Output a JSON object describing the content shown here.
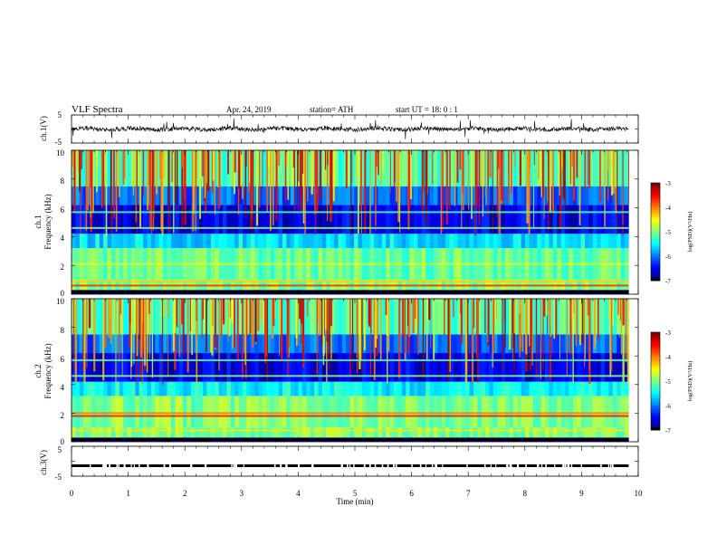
{
  "header": {
    "title": "VLF  Spectra",
    "date": "Apr. 24, 2019",
    "station": "station= ATH",
    "start": "start  UT  =    18: 0   : 1"
  },
  "chart_data": [
    {
      "type": "line",
      "panel": "ch1-waveform",
      "ylabel": "ch.1(V)",
      "yticks": [
        "5",
        "-5"
      ],
      "ylim": [
        -5,
        5
      ],
      "xlim": [
        0,
        10
      ],
      "trace_color": "#000000",
      "baseline_v": 0,
      "data_extent_min": 9.83
    },
    {
      "type": "heatmap",
      "panel": "ch1-spectrogram",
      "ylabel": "ch.1\nFrequency  (kHz)",
      "ylabel_line1": "ch.1",
      "ylabel_line2": "Frequency  (kHz)",
      "yticks": [
        "10",
        "8",
        "6",
        "4",
        "2",
        "0"
      ],
      "ylim": [
        0,
        10
      ],
      "xlim": [
        0,
        10
      ],
      "data_extent_min": 9.83,
      "colorbar": {
        "label": "log(PSD)(V²/Hz)",
        "ticks": [
          "-3",
          "-4",
          "-5",
          "-6",
          "-7"
        ],
        "range": [
          -7,
          -3
        ]
      },
      "background_bands": [
        {
          "f_from": 0,
          "f_to": 0.3,
          "level": -6.8
        },
        {
          "f_from": 0.3,
          "f_to": 1.0,
          "level": -5.0
        },
        {
          "f_from": 1.0,
          "f_to": 3.2,
          "level": -5.1
        },
        {
          "f_from": 3.2,
          "f_to": 4.2,
          "level": -5.6
        },
        {
          "f_from": 4.2,
          "f_to": 6.2,
          "level": -6.6
        },
        {
          "f_from": 6.2,
          "f_to": 7.5,
          "level": -6.1
        },
        {
          "f_from": 7.5,
          "f_to": 10.0,
          "level": -5.2
        }
      ],
      "lines": [
        {
          "f": 0.6,
          "level": -3.7
        },
        {
          "f": 0.9,
          "level": -4.3
        },
        {
          "f": 2.1,
          "level": -4.6
        },
        {
          "f": 4.6,
          "level": -5.0
        },
        {
          "f": 5.7,
          "level": -5.2
        }
      ]
    },
    {
      "type": "heatmap",
      "panel": "ch2-spectrogram",
      "ylabel": "ch.2\nFrequency  (kHz)",
      "ylabel_line1": "ch.2",
      "ylabel_line2": "Frequency  (kHz)",
      "yticks": [
        "10",
        "8",
        "6",
        "4",
        "2",
        "0"
      ],
      "ylim": [
        0,
        10
      ],
      "xlim": [
        0,
        10
      ],
      "data_extent_min": 9.83,
      "colorbar": {
        "label": "log(PSD)(V²/Hz)",
        "ticks": [
          "-3",
          "-4",
          "-5",
          "-6",
          "-7"
        ],
        "range": [
          -7,
          -3
        ]
      },
      "background_bands": [
        {
          "f_from": 0,
          "f_to": 0.3,
          "level": -6.8
        },
        {
          "f_from": 0.3,
          "f_to": 1.0,
          "level": -5.0
        },
        {
          "f_from": 1.0,
          "f_to": 3.2,
          "level": -5.0
        },
        {
          "f_from": 3.2,
          "f_to": 4.2,
          "level": -5.5
        },
        {
          "f_from": 4.2,
          "f_to": 6.2,
          "level": -6.6
        },
        {
          "f_from": 6.2,
          "f_to": 7.5,
          "level": -6.1
        },
        {
          "f_from": 7.5,
          "f_to": 10.0,
          "level": -5.2
        }
      ],
      "lines": [
        {
          "f": 1.8,
          "level": -3.6
        },
        {
          "f": 2.0,
          "level": -4.0
        },
        {
          "f": 0.8,
          "level": -4.4
        },
        {
          "f": 4.6,
          "level": -5.0
        },
        {
          "f": 5.7,
          "level": -5.2
        }
      ]
    },
    {
      "type": "line",
      "panel": "ch3-waveform",
      "ylabel": "ch.3(V)",
      "yticks": [
        "5",
        "-5"
      ],
      "ylim": [
        -5,
        5
      ],
      "xlim": [
        0,
        10
      ],
      "trace_color": "#000000",
      "baseline_v": -1.5,
      "data_extent_min": 9.83,
      "xlabel": "Time  (min)",
      "xticks": [
        "0",
        "1",
        "2",
        "3",
        "4",
        "5",
        "6",
        "7",
        "8",
        "9",
        "10"
      ]
    }
  ]
}
